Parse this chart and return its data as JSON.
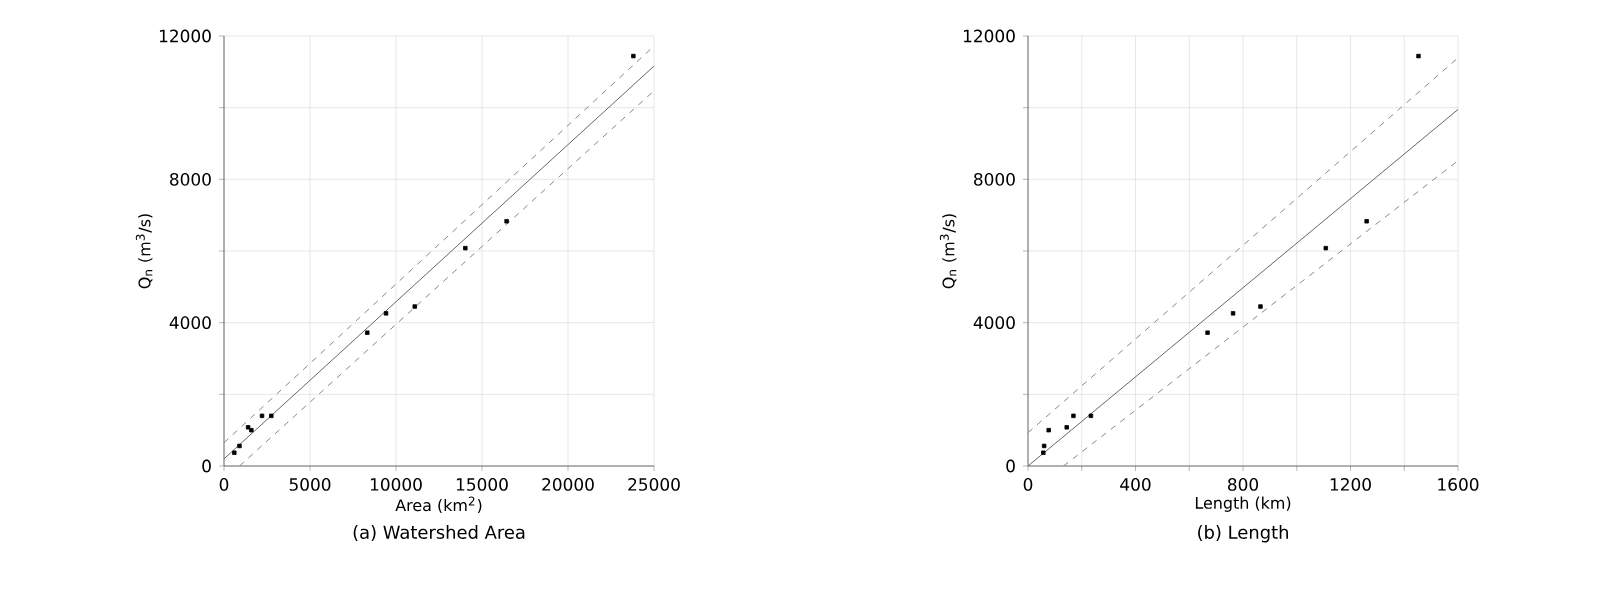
{
  "chart_data": [
    {
      "type": "scatter",
      "title": "(a) Watershed Area",
      "xlabel": "Area (km$^{2}$)",
      "ylabel": "Q$_{n}$ (m$^{3}$/s)",
      "xlim": [
        0,
        25000
      ],
      "ylim": [
        0,
        12000
      ],
      "xticks": [
        0,
        5000,
        10000,
        15000,
        20000,
        25000
      ],
      "yticks": [
        0,
        {
          "value": 2000,
          "label": null
        },
        4000,
        {
          "value": 6000,
          "label": null
        },
        8000,
        {
          "value": 10000,
          "label": null
        },
        12000
      ],
      "grid": true,
      "series": [
        {
          "marker": "square",
          "color": "#000000",
          "x": [
            600,
            900,
            1400,
            1590,
            2210,
            2750,
            8330,
            9420,
            11090,
            14030,
            16430,
            23800
          ],
          "values": [
            370,
            560,
            1080,
            1000,
            1400,
            1400,
            3720,
            4260,
            4450,
            6080,
            6830,
            11440
          ]
        },
        {
          "type": "line",
          "color": "#666666",
          "line_style": "solid",
          "x": [
            0,
            25000
          ],
          "values": [
            200,
            11160
          ]
        },
        {
          "type": "line",
          "color": "#888888",
          "line_style": "dashed",
          "x": [
            0,
            25000
          ],
          "values": [
            650,
            11720
          ]
        },
        {
          "type": "line",
          "color": "#888888",
          "line_style": "dashed",
          "x": [
            900,
            25000
          ],
          "values": [
            0,
            10470
          ]
        }
      ]
    },
    {
      "type": "scatter",
      "title": "(b) Length",
      "xlabel": "Length (km)",
      "ylabel": "Q$_{n}$ (m$^{3}$/s)",
      "xlim": [
        0,
        1600
      ],
      "ylim": [
        0,
        12000
      ],
      "xticks": [
        0,
        {
          "value": 200,
          "label": null
        },
        400,
        {
          "value": 600,
          "label": null
        },
        800,
        {
          "value": 1000,
          "label": null
        },
        1200,
        {
          "value": 1400,
          "label": null
        },
        1600
      ],
      "yticks": [
        0,
        {
          "value": 2000,
          "label": null
        },
        4000,
        {
          "value": 6000,
          "label": null
        },
        8000,
        {
          "value": 10000,
          "label": null
        },
        12000
      ],
      "grid": true,
      "series": [
        {
          "marker": "square",
          "color": "#000000",
          "x": [
            57,
            60,
            77,
            144,
            169,
            234,
            668,
            763,
            865,
            1108,
            1260,
            1453
          ],
          "values": [
            370,
            560,
            1000,
            1080,
            1400,
            1400,
            3720,
            4260,
            4450,
            6080,
            6830,
            11440
          ]
        },
        {
          "type": "line",
          "color": "#666666",
          "line_style": "solid",
          "x": [
            0,
            1600
          ],
          "values": [
            0,
            9950
          ]
        },
        {
          "type": "line",
          "color": "#888888",
          "line_style": "dashed",
          "x": [
            0,
            1600
          ],
          "values": [
            930,
            11390
          ]
        },
        {
          "type": "line",
          "color": "#888888",
          "line_style": "dashed",
          "x": [
            132,
            1600
          ],
          "values": [
            0,
            8520
          ]
        }
      ]
    }
  ]
}
